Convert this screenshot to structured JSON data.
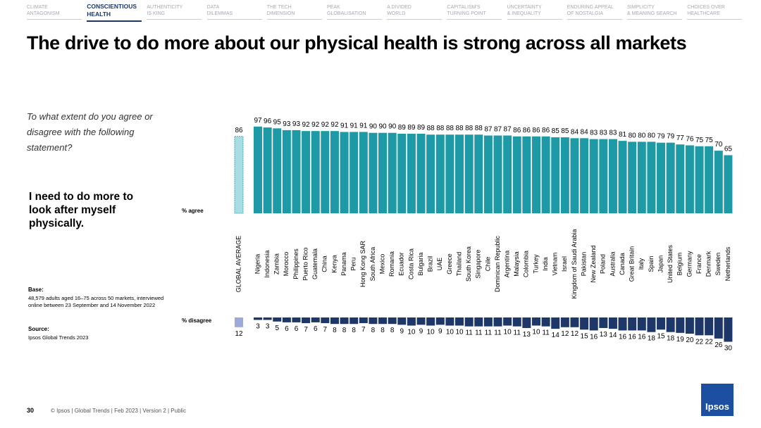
{
  "nav": [
    [
      "CLIMATE",
      "ANTAGONISM"
    ],
    [
      "CONSCIENTIOUS",
      "HEALTH"
    ],
    [
      "AUTHENTICITY",
      "IS KING"
    ],
    [
      "DATA",
      "DILEMMAS"
    ],
    [
      "THE TECH",
      "DIMENSION"
    ],
    [
      "PEAK",
      "GLOBALISATION"
    ],
    [
      "A DIVIDED",
      "WORLD"
    ],
    [
      "CAPITALISM'S",
      "TURNING POINT"
    ],
    [
      "UNCERTAINTY",
      "& INEQUALITY"
    ],
    [
      "ENDURING APPEAL",
      "OF NOSTALGIA"
    ],
    [
      "SIMPLICITY",
      "& MEANING SEARCH"
    ],
    [
      "CHOICES OVER",
      "HEALTHCARE"
    ]
  ],
  "title": "The drive to do more about our physical health is strong across all markets",
  "question": "To what extent do you agree or disagree with the following statement?",
  "statement": "I need to do more to look after myself physically.",
  "base_label": "Base:",
  "base_text": "48,579 adults aged 16–75 across 50 markets, interviewed online between 23 September and 14 November 2022",
  "source_label": "Source:",
  "source_text": "Ipsos Global Trends 2023",
  "footer": {
    "page": "30",
    "text": "© Ipsos | Global Trends | Feb 2023 | Version 2 | Public"
  },
  "logo": "Ipsos",
  "chart_data": {
    "type": "bar",
    "categories": [
      "GLOBAL AVERAGE",
      "Nigeria",
      "Indonesia",
      "Zambia",
      "Morocco",
      "Philippines",
      "Puerto Rico",
      "Guatemala",
      "China",
      "Kenya",
      "Panama",
      "Peru",
      "Hong Kong SAR",
      "South Africa",
      "Mexico",
      "Romania",
      "Ecuador",
      "Costa Rica",
      "Bulgaria",
      "Brazil",
      "UAE",
      "Greece",
      "Thailand",
      "South Korea",
      "Singapore",
      "Chile",
      "Dominican Republic",
      "Argentina",
      "Malaysia",
      "Colombia",
      "Turkey",
      "India",
      "Vietnam",
      "Israel",
      "Kingdom of Saudi Arabia",
      "Pakistan",
      "New Zealand",
      "Poland",
      "Australia",
      "Canada",
      "Great Britain",
      "Italy",
      "Spain",
      "Japan",
      "United States",
      "Belgium",
      "Germany",
      "France",
      "Denmark",
      "Sweden",
      "Netherlands"
    ],
    "series": [
      {
        "name": "% agree",
        "color": "#1d9aa6",
        "average_color": "#a8dde4",
        "values": [
          86,
          97,
          96,
          95,
          93,
          93,
          92,
          92,
          92,
          92,
          91,
          91,
          91,
          90,
          90,
          90,
          89,
          89,
          89,
          88,
          88,
          88,
          88,
          88,
          88,
          87,
          87,
          87,
          86,
          86,
          86,
          86,
          85,
          85,
          84,
          84,
          83,
          83,
          83,
          81,
          80,
          80,
          80,
          79,
          79,
          77,
          76,
          75,
          75,
          70,
          65
        ]
      },
      {
        "name": "% disagree",
        "color": "#1c3768",
        "average_color": "#9ea9da",
        "values": [
          12,
          3,
          3,
          5,
          6,
          6,
          7,
          6,
          7,
          8,
          8,
          8,
          7,
          8,
          8,
          8,
          9,
          10,
          9,
          10,
          9,
          10,
          10,
          11,
          11,
          11,
          11,
          10,
          11,
          13,
          10,
          11,
          14,
          12,
          12,
          15,
          16,
          13,
          14,
          16,
          16,
          16,
          18,
          15,
          18,
          19,
          20,
          22,
          22,
          26,
          30
        ]
      }
    ]
  }
}
